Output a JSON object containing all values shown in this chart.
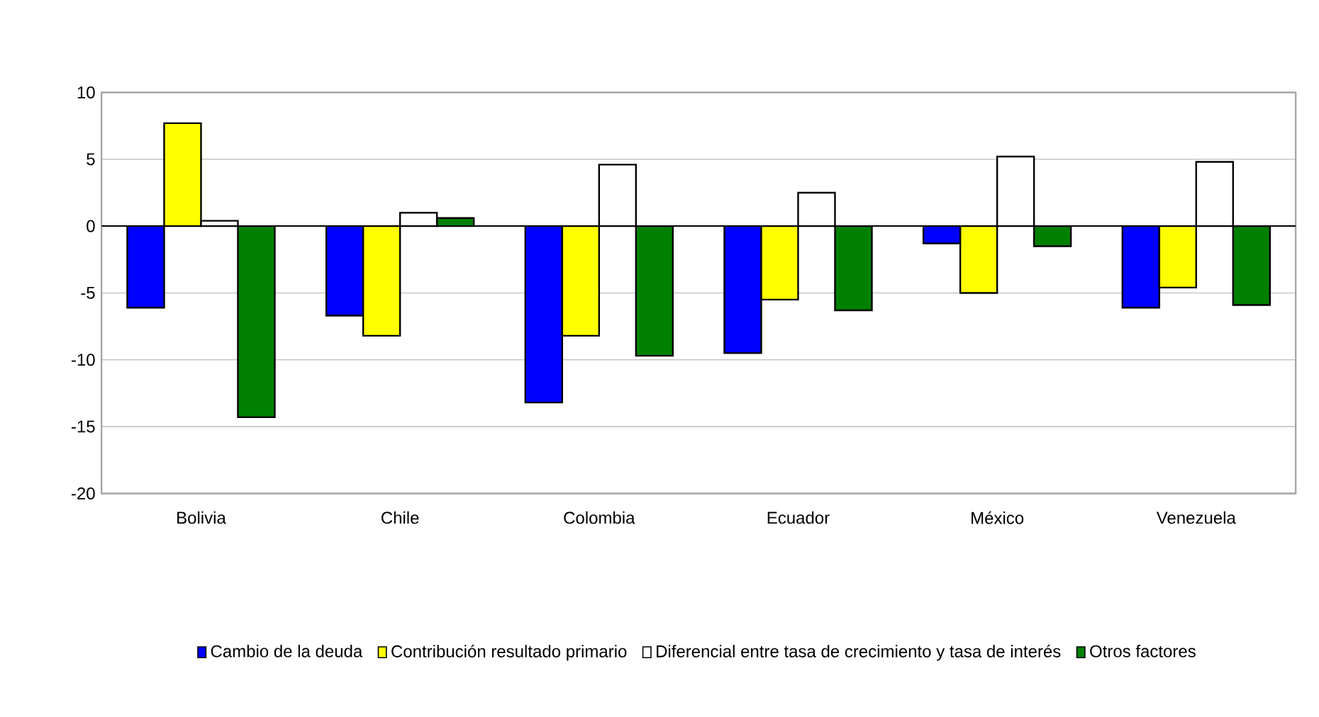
{
  "chart_data": {
    "type": "bar",
    "categories": [
      "Bolivia",
      "Chile",
      "Colombia",
      "Ecuador",
      "México",
      "Venezuela"
    ],
    "series": [
      {
        "name": "Cambio de la deuda",
        "color": "#0000ff",
        "values": [
          -6.1,
          -6.7,
          -13.2,
          -9.5,
          -1.3,
          -6.1
        ]
      },
      {
        "name": "Contribución resultado primario",
        "color": "#ffff00",
        "values": [
          7.7,
          -8.2,
          -8.2,
          -5.5,
          -5.0,
          -4.6
        ]
      },
      {
        "name": "Diferencial entre tasa de crecimiento y tasa de interés",
        "color": "#ffffff",
        "values": [
          0.4,
          1.0,
          4.6,
          2.5,
          5.2,
          4.8
        ]
      },
      {
        "name": "Otros factores",
        "color": "#008000",
        "values": [
          -14.3,
          0.6,
          -9.7,
          -6.3,
          -1.5,
          -5.9
        ]
      }
    ],
    "ylim": [
      -20,
      10
    ],
    "yticks": [
      -20,
      -15,
      -10,
      -5,
      0,
      5,
      10
    ],
    "grid": "y",
    "legend": "bottom"
  }
}
